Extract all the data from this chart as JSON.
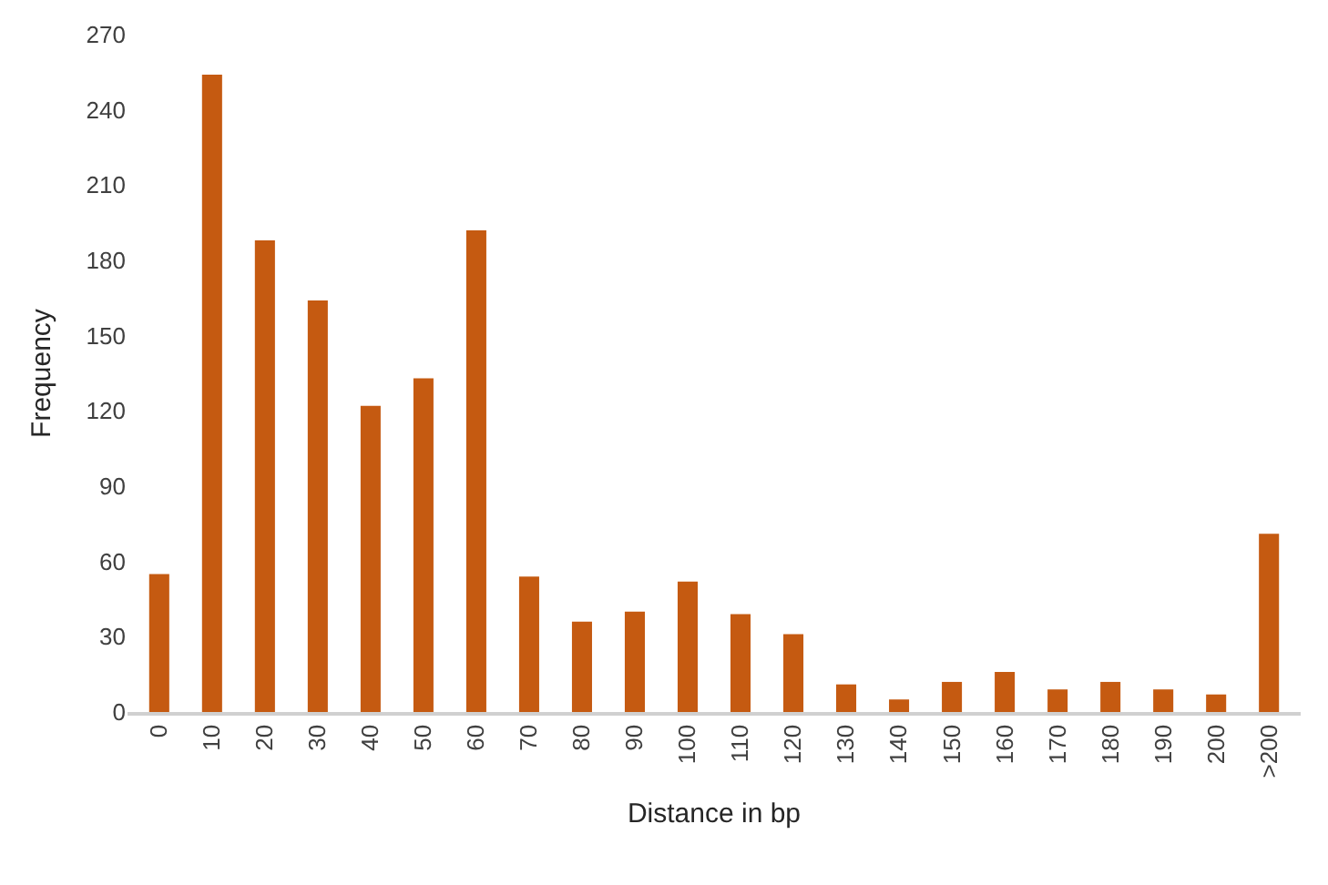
{
  "chart_data": {
    "type": "bar",
    "xlabel": "Distance in bp",
    "ylabel": "Frequency",
    "categories": [
      "0",
      "10",
      "20",
      "30",
      "40",
      "50",
      "60",
      "70",
      "80",
      "90",
      "100",
      "110",
      "120",
      "130",
      "140",
      "150",
      "160",
      "170",
      "180",
      "190",
      "200",
      ">200"
    ],
    "values": [
      55,
      254,
      188,
      164,
      122,
      133,
      192,
      54,
      36,
      40,
      52,
      39,
      31,
      11,
      5,
      12,
      16,
      9,
      12,
      9,
      7,
      71
    ],
    "color": "#c55a11",
    "ylim": [
      0,
      270
    ],
    "yticks": [
      0,
      30,
      60,
      90,
      120,
      150,
      180,
      210,
      240,
      270
    ]
  }
}
